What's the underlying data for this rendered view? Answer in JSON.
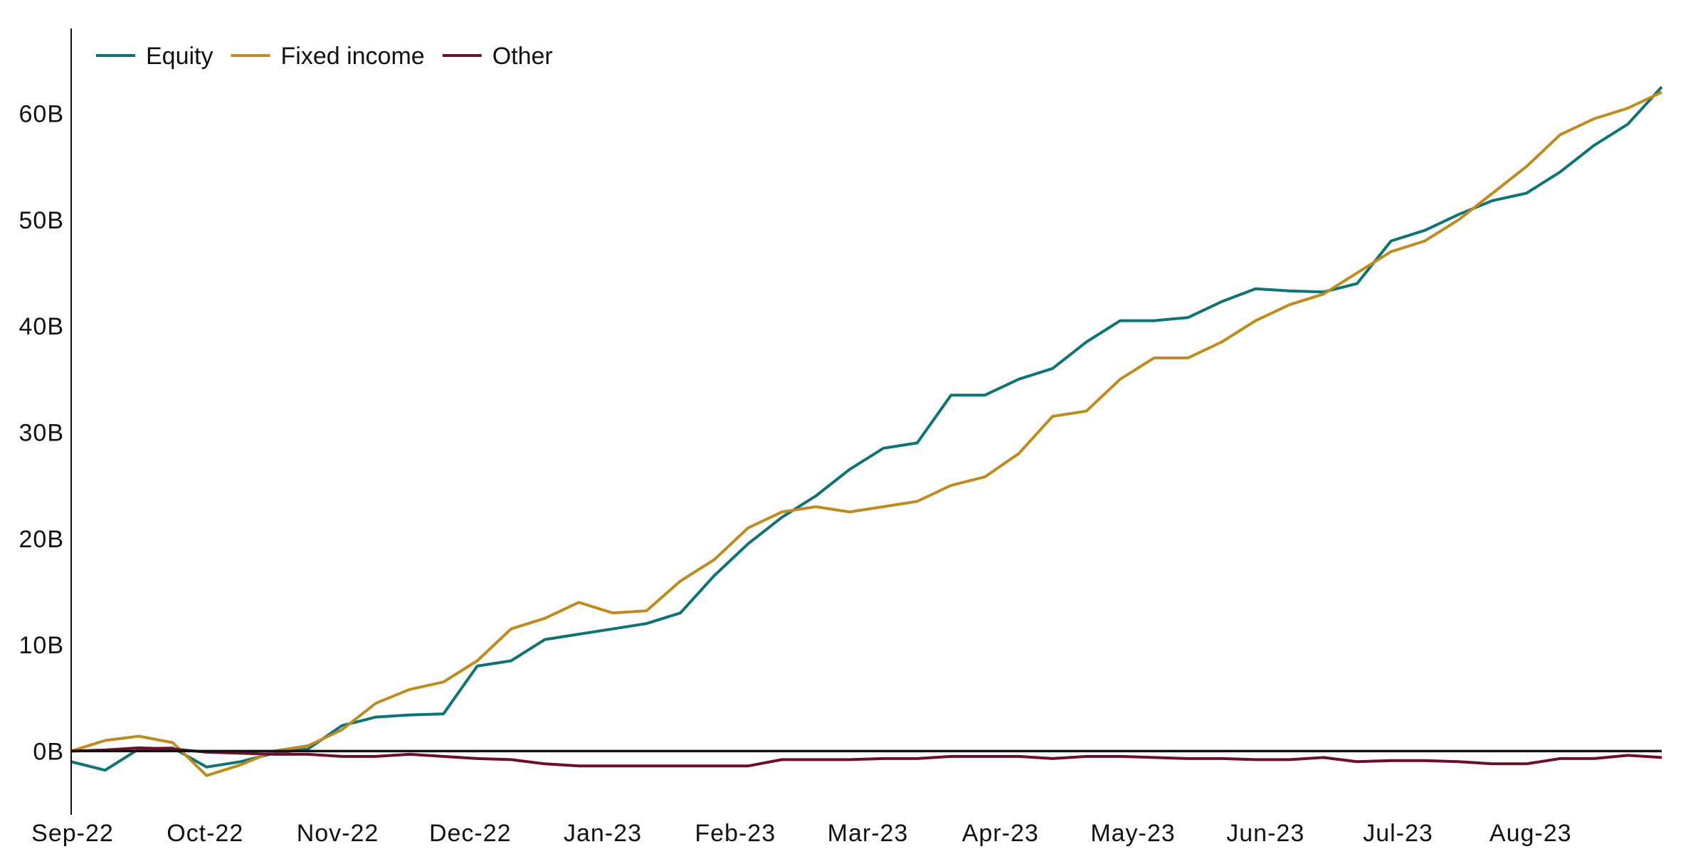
{
  "chart_data": {
    "type": "line",
    "title": "",
    "xlabel": "",
    "ylabel": "",
    "ylim": [
      -6,
      68
    ],
    "yticks": [
      0,
      10,
      20,
      30,
      40,
      50,
      60
    ],
    "ytick_labels": [
      "0B",
      "10B",
      "20B",
      "30B",
      "40B",
      "50B",
      "60B"
    ],
    "y_unit": "B",
    "xtick_labels": [
      "Sep-22",
      "Oct-22",
      "Nov-22",
      "Dec-22",
      "Jan-23",
      "Feb-23",
      "Mar-23",
      "Apr-23",
      "May-23",
      "Jun-23",
      "Jul-23",
      "Aug-23"
    ],
    "grid": false,
    "zero_line": true,
    "legend_position": "top-left",
    "x": [
      "Sep-22",
      "Sep-22",
      "Sep-22",
      "Sep-22",
      "Oct-22",
      "Oct-22",
      "Oct-22",
      "Oct-22",
      "Nov-22",
      "Nov-22",
      "Nov-22",
      "Nov-22",
      "Dec-22",
      "Dec-22",
      "Dec-22",
      "Dec-22",
      "Jan-23",
      "Jan-23",
      "Jan-23",
      "Jan-23",
      "Feb-23",
      "Feb-23",
      "Feb-23",
      "Feb-23",
      "Mar-23",
      "Mar-23",
      "Mar-23",
      "Mar-23",
      "Apr-23",
      "Apr-23",
      "Apr-23",
      "Apr-23",
      "May-23",
      "May-23",
      "May-23",
      "May-23",
      "Jun-23",
      "Jun-23",
      "Jun-23",
      "Jun-23",
      "Jul-23",
      "Jul-23",
      "Jul-23",
      "Jul-23",
      "Aug-23",
      "Aug-23",
      "Aug-23",
      "Aug-23"
    ],
    "series": [
      {
        "name": "Equity",
        "color": "#0f7373",
        "values": [
          -1.0,
          -1.8,
          0.2,
          0.3,
          -1.5,
          -1.0,
          -0.2,
          0.2,
          2.4,
          3.2,
          3.4,
          3.5,
          8.0,
          8.5,
          10.5,
          11.0,
          11.5,
          12.0,
          13.0,
          16.5,
          19.5,
          22.0,
          24.0,
          26.5,
          28.5,
          29.0,
          33.5,
          33.5,
          35.0,
          36.0,
          38.5,
          40.5,
          40.5,
          40.8,
          42.3,
          43.5,
          43.3,
          43.2,
          44.0,
          48.0,
          49.0,
          50.5,
          51.8,
          52.5,
          54.5,
          57.0,
          59.0,
          62.5
        ]
      },
      {
        "name": "Fixed income",
        "color": "#bd8b1f",
        "values": [
          0.0,
          1.0,
          1.4,
          0.8,
          -2.3,
          -1.3,
          0.0,
          0.5,
          2.0,
          4.5,
          5.8,
          6.5,
          8.5,
          11.5,
          12.5,
          14.0,
          13.0,
          13.2,
          16.0,
          18.0,
          21.0,
          22.5,
          23.0,
          22.5,
          23.0,
          23.5,
          25.0,
          25.8,
          28.0,
          31.5,
          32.0,
          35.0,
          37.0,
          37.0,
          38.5,
          40.5,
          42.0,
          43.0,
          45.0,
          47.0,
          48.0,
          50.0,
          52.5,
          55.0,
          58.0,
          59.5,
          60.5,
          62.0
        ]
      },
      {
        "name": "Other",
        "color": "#6b1028",
        "values": [
          0.0,
          0.1,
          0.3,
          0.2,
          -0.1,
          -0.2,
          -0.3,
          -0.3,
          -0.5,
          -0.5,
          -0.3,
          -0.5,
          -0.7,
          -0.8,
          -1.2,
          -1.4,
          -1.4,
          -1.4,
          -1.4,
          -1.4,
          -1.4,
          -0.8,
          -0.8,
          -0.8,
          -0.7,
          -0.7,
          -0.5,
          -0.5,
          -0.5,
          -0.7,
          -0.5,
          -0.5,
          -0.6,
          -0.7,
          -0.7,
          -0.8,
          -0.8,
          -0.6,
          -1.0,
          -0.9,
          -0.9,
          -1.0,
          -1.2,
          -1.2,
          -0.7,
          -0.7,
          -0.4,
          -0.6
        ]
      }
    ]
  }
}
